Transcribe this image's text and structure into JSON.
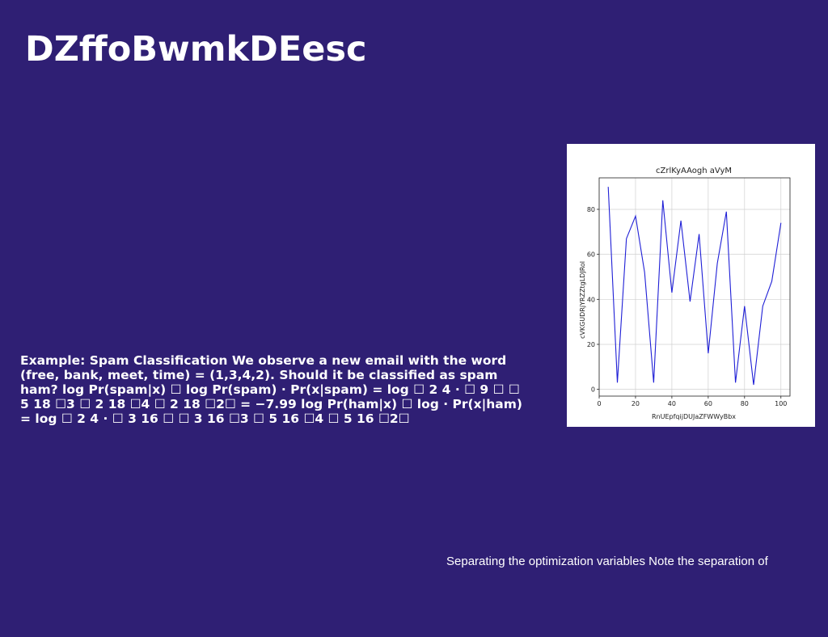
{
  "slide": {
    "title": "DZffoBwmkDEesc",
    "body": "Example: Spam Classification We observe a new email with the word (free, bank, meet, time) = (1,3,4,2). Should it be classified as spam ham? log Pr(spam|x) ☐ log Pr(spam) · Pr(x|spam) = log ☐ 2 4 · ☐ 9 ☐ ☐ 5 18 ☐3 ☐ 2 18 ☐4 ☐ 2 18 ☐2☐ = −7.99 log Pr(ham|x) ☐ log · Pr(x|ham) = log ☐ 2 4 · ☐ 3 16 ☐ ☐ 3 16 ☐3 ☐ 5 16 ☐4 ☐ 5 16 ☐2☐",
    "footer": "Separating the optimization variables Note the separation of"
  },
  "colors": {
    "background": "#2f1f74",
    "text": "#ffffff",
    "line": "#1f1fd6",
    "grid": "#d0d0d0"
  },
  "chart_data": {
    "type": "line",
    "title": "cZrlKyAAogh aVyM",
    "xlabel": "RnUEpfqijDUJaZFWWyBbx",
    "ylabel": "cVKGUDRjYRZZtgLDJRol",
    "x": [
      5,
      10,
      15,
      20,
      25,
      30,
      35,
      40,
      45,
      50,
      55,
      60,
      65,
      70,
      75,
      80,
      85,
      90,
      95,
      100
    ],
    "series": [
      {
        "values": [
          90,
          3,
          67,
          77,
          52,
          3,
          84,
          43,
          75,
          39,
          69,
          16,
          56,
          79,
          3,
          37,
          2,
          37,
          48,
          74
        ]
      }
    ],
    "xlim": [
      0,
      105
    ],
    "ylim": [
      -3,
      94
    ],
    "xticks": [
      0,
      20,
      40,
      60,
      80,
      100
    ],
    "yticks": [
      0,
      20,
      40,
      60,
      80
    ],
    "grid": true
  }
}
